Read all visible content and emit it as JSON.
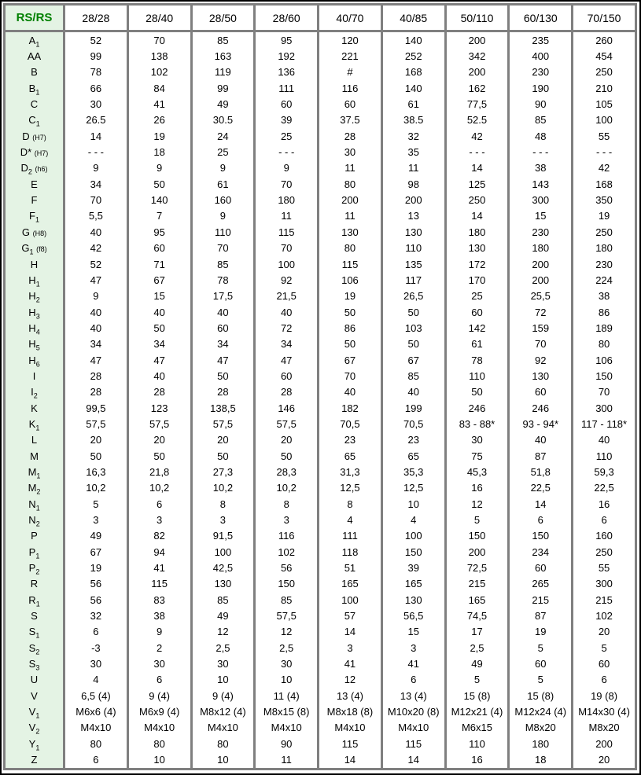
{
  "colors": {
    "corner_header_text": "#008000",
    "label_column_bg": "#e4f3e4",
    "grid_border_gray": "#7f7f7f",
    "outer_frame": "#000000",
    "data_text": "#000000"
  },
  "chart_data": {
    "type": "table",
    "corner_label": "RS/RS",
    "columns": [
      "28/28",
      "28/40",
      "28/50",
      "28/60",
      "40/70",
      "40/85",
      "50/110",
      "60/130",
      "70/150"
    ],
    "rows": [
      {
        "label": {
          "base": "A",
          "sub": "1"
        },
        "values": [
          "52",
          "70",
          "85",
          "95",
          "120",
          "140",
          "200",
          "235",
          "260"
        ]
      },
      {
        "label": {
          "base": "AA"
        },
        "values": [
          "99",
          "138",
          "163",
          "192",
          "221",
          "252",
          "342",
          "400",
          "454"
        ]
      },
      {
        "label": {
          "base": "B"
        },
        "values": [
          "78",
          "102",
          "119",
          "136",
          "#",
          "168",
          "200",
          "230",
          "250"
        ]
      },
      {
        "label": {
          "base": "B",
          "sub": "1"
        },
        "values": [
          "66",
          "84",
          "99",
          "111",
          "116",
          "140",
          "162",
          "190",
          "210"
        ]
      },
      {
        "label": {
          "base": "C"
        },
        "values": [
          "30",
          "41",
          "49",
          "60",
          "60",
          "61",
          "77,5",
          "90",
          "105"
        ]
      },
      {
        "label": {
          "base": "C",
          "sub": "1"
        },
        "values": [
          "26.5",
          "26",
          "30.5",
          "39",
          "37.5",
          "38.5",
          "52.5",
          "85",
          "100"
        ]
      },
      {
        "label": {
          "base": "D",
          "note": "(H7)"
        },
        "values": [
          "14",
          "19",
          "24",
          "25",
          "28",
          "32",
          "42",
          "48",
          "55"
        ]
      },
      {
        "label": {
          "base": "D*",
          "note": "(H7)"
        },
        "values": [
          "- - -",
          "18",
          "25",
          "- - -",
          "30",
          "35",
          "- - -",
          "- - -",
          "- - -"
        ]
      },
      {
        "label": {
          "base": "D",
          "sub": "2",
          "note": "(h6)"
        },
        "values": [
          "9",
          "9",
          "9",
          "9",
          "11",
          "11",
          "14",
          "38",
          "42"
        ]
      },
      {
        "label": {
          "base": "E"
        },
        "values": [
          "34",
          "50",
          "61",
          "70",
          "80",
          "98",
          "125",
          "143",
          "168"
        ]
      },
      {
        "label": {
          "base": "F"
        },
        "values": [
          "70",
          "140",
          "160",
          "180",
          "200",
          "200",
          "250",
          "300",
          "350"
        ]
      },
      {
        "label": {
          "base": "F",
          "sub": "1"
        },
        "values": [
          "5,5",
          "7",
          "9",
          "11",
          "11",
          "13",
          "14",
          "15",
          "19"
        ]
      },
      {
        "label": {
          "base": "G",
          "note": "(H8)"
        },
        "values": [
          "40",
          "95",
          "110",
          "115",
          "130",
          "130",
          "180",
          "230",
          "250"
        ]
      },
      {
        "label": {
          "base": "G",
          "sub": "1",
          "note": "(f8)"
        },
        "values": [
          "42",
          "60",
          "70",
          "70",
          "80",
          "110",
          "130",
          "180",
          "180"
        ]
      },
      {
        "label": {
          "base": "H"
        },
        "values": [
          "52",
          "71",
          "85",
          "100",
          "115",
          "135",
          "172",
          "200",
          "230"
        ]
      },
      {
        "label": {
          "base": "H",
          "sub": "1"
        },
        "values": [
          "47",
          "67",
          "78",
          "92",
          "106",
          "117",
          "170",
          "200",
          "224"
        ]
      },
      {
        "label": {
          "base": "H",
          "sub": "2"
        },
        "values": [
          "9",
          "15",
          "17,5",
          "21,5",
          "19",
          "26,5",
          "25",
          "25,5",
          "38"
        ]
      },
      {
        "label": {
          "base": "H",
          "sub": "3"
        },
        "values": [
          "40",
          "40",
          "40",
          "40",
          "50",
          "50",
          "60",
          "72",
          "86"
        ]
      },
      {
        "label": {
          "base": "H",
          "sub": "4"
        },
        "values": [
          "40",
          "50",
          "60",
          "72",
          "86",
          "103",
          "142",
          "159",
          "189"
        ]
      },
      {
        "label": {
          "base": "H",
          "sub": "5"
        },
        "values": [
          "34",
          "34",
          "34",
          "34",
          "50",
          "50",
          "61",
          "70",
          "80"
        ]
      },
      {
        "label": {
          "base": "H",
          "sub": "6"
        },
        "values": [
          "47",
          "47",
          "47",
          "47",
          "67",
          "67",
          "78",
          "92",
          "106"
        ]
      },
      {
        "label": {
          "base": "I"
        },
        "values": [
          "28",
          "40",
          "50",
          "60",
          "70",
          "85",
          "110",
          "130",
          "150"
        ]
      },
      {
        "label": {
          "base": "I",
          "sub": "2"
        },
        "values": [
          "28",
          "28",
          "28",
          "28",
          "40",
          "40",
          "50",
          "60",
          "70"
        ]
      },
      {
        "label": {
          "base": "K"
        },
        "values": [
          "99,5",
          "123",
          "138,5",
          "146",
          "182",
          "199",
          "246",
          "246",
          "300"
        ]
      },
      {
        "label": {
          "base": "K",
          "sub": "1"
        },
        "values": [
          "57,5",
          "57,5",
          "57,5",
          "57,5",
          "70,5",
          "70,5",
          "83 - 88*",
          "93 - 94*",
          "117 - 118*"
        ]
      },
      {
        "label": {
          "base": "L"
        },
        "values": [
          "20",
          "20",
          "20",
          "20",
          "23",
          "23",
          "30",
          "40",
          "40"
        ]
      },
      {
        "label": {
          "base": "M"
        },
        "values": [
          "50",
          "50",
          "50",
          "50",
          "65",
          "65",
          "75",
          "87",
          "110"
        ]
      },
      {
        "label": {
          "base": "M",
          "sub": "1"
        },
        "values": [
          "16,3",
          "21,8",
          "27,3",
          "28,3",
          "31,3",
          "35,3",
          "45,3",
          "51,8",
          "59,3"
        ]
      },
      {
        "label": {
          "base": "M",
          "sub": "2"
        },
        "values": [
          "10,2",
          "10,2",
          "10,2",
          "10,2",
          "12,5",
          "12,5",
          "16",
          "22,5",
          "22,5"
        ]
      },
      {
        "label": {
          "base": "N",
          "sub": "1"
        },
        "values": [
          "5",
          "6",
          "8",
          "8",
          "8",
          "10",
          "12",
          "14",
          "16"
        ]
      },
      {
        "label": {
          "base": "N",
          "sub": "2"
        },
        "values": [
          "3",
          "3",
          "3",
          "3",
          "4",
          "4",
          "5",
          "6",
          "6"
        ]
      },
      {
        "label": {
          "base": "P"
        },
        "values": [
          "49",
          "82",
          "91,5",
          "116",
          "111",
          "100",
          "150",
          "150",
          "160"
        ]
      },
      {
        "label": {
          "base": "P",
          "sub": "1"
        },
        "values": [
          "67",
          "94",
          "100",
          "102",
          "118",
          "150",
          "200",
          "234",
          "250"
        ]
      },
      {
        "label": {
          "base": "P",
          "sub": "2"
        },
        "values": [
          "19",
          "41",
          "42,5",
          "56",
          "51",
          "39",
          "72,5",
          "60",
          "55"
        ]
      },
      {
        "label": {
          "base": "R"
        },
        "values": [
          "56",
          "115",
          "130",
          "150",
          "165",
          "165",
          "215",
          "265",
          "300"
        ]
      },
      {
        "label": {
          "base": "R",
          "sub": "1"
        },
        "values": [
          "56",
          "83",
          "85",
          "85",
          "100",
          "130",
          "165",
          "215",
          "215"
        ]
      },
      {
        "label": {
          "base": "S"
        },
        "values": [
          "32",
          "38",
          "49",
          "57,5",
          "57",
          "56,5",
          "74,5",
          "87",
          "102"
        ]
      },
      {
        "label": {
          "base": "S",
          "sub": "1"
        },
        "values": [
          "6",
          "9",
          "12",
          "12",
          "14",
          "15",
          "17",
          "19",
          "20"
        ]
      },
      {
        "label": {
          "base": "S",
          "sub": "2"
        },
        "values": [
          "-3",
          "2",
          "2,5",
          "2,5",
          "3",
          "3",
          "2,5",
          "5",
          "5"
        ]
      },
      {
        "label": {
          "base": "S",
          "sub": "3"
        },
        "values": [
          "30",
          "30",
          "30",
          "30",
          "41",
          "41",
          "49",
          "60",
          "60"
        ]
      },
      {
        "label": {
          "base": "U"
        },
        "values": [
          "4",
          "6",
          "10",
          "10",
          "12",
          "6",
          "5",
          "5",
          "6"
        ]
      },
      {
        "label": {
          "base": "V"
        },
        "values": [
          "6,5 (4)",
          "9 (4)",
          "9 (4)",
          "11 (4)",
          "13 (4)",
          "13 (4)",
          "15 (8)",
          "15 (8)",
          "19 (8)"
        ]
      },
      {
        "label": {
          "base": "V",
          "sub": "1"
        },
        "values": [
          "M6x6 (4)",
          "M6x9 (4)",
          "M8x12 (4)",
          "M8x15 (8)",
          "M8x18 (8)",
          "M10x20 (8)",
          "M12x21 (4)",
          "M12x24 (4)",
          "M14x30 (4)"
        ]
      },
      {
        "label": {
          "base": "V",
          "sub": "2"
        },
        "values": [
          "M4x10",
          "M4x10",
          "M4x10",
          "M4x10",
          "M4x10",
          "M4x10",
          "M6x15",
          "M8x20",
          "M8x20"
        ]
      },
      {
        "label": {
          "base": "Y",
          "sub": "1"
        },
        "values": [
          "80",
          "80",
          "80",
          "90",
          "115",
          "115",
          "110",
          "180",
          "200"
        ]
      },
      {
        "label": {
          "base": "Z"
        },
        "values": [
          "6",
          "10",
          "10",
          "11",
          "14",
          "14",
          "16",
          "18",
          "20"
        ]
      }
    ]
  }
}
